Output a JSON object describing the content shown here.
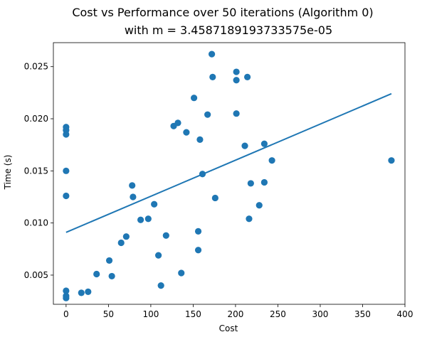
{
  "chart_data": {
    "type": "scatter",
    "title": "Cost vs Performance over 50 iterations (Algorithm 0)",
    "subtitle": "with m = 3.4587189193733575e-05",
    "xlabel": "Cost",
    "ylabel": "Time (s)",
    "xlim": [
      -15,
      400
    ],
    "ylim": [
      0.0022,
      0.0273
    ],
    "grid": false,
    "x_ticks": [
      0,
      50,
      100,
      150,
      200,
      250,
      300,
      350,
      400
    ],
    "y_ticks": [
      0.005,
      0.01,
      0.015,
      0.02,
      0.025
    ],
    "x_tick_labels": [
      "0",
      "50",
      "100",
      "150",
      "200",
      "250",
      "300",
      "350",
      "400"
    ],
    "y_tick_labels": [
      "0.005",
      "0.010",
      "0.015",
      "0.020",
      "0.025"
    ],
    "colors": {
      "series": "#1f77b4"
    },
    "series": [
      {
        "kind": "points",
        "points": [
          [
            0,
            0.0192
          ],
          [
            0,
            0.0189
          ],
          [
            0,
            0.0185
          ],
          [
            0,
            0.015
          ],
          [
            0,
            0.0126
          ],
          [
            0,
            0.0035
          ],
          [
            0,
            0.003
          ],
          [
            0,
            0.0028
          ],
          [
            18,
            0.0033
          ],
          [
            26,
            0.0034
          ],
          [
            36,
            0.0051
          ],
          [
            51,
            0.0064
          ],
          [
            54,
            0.0049
          ],
          [
            65,
            0.0081
          ],
          [
            71,
            0.0087
          ],
          [
            78,
            0.0136
          ],
          [
            79,
            0.0125
          ],
          [
            88,
            0.0103
          ],
          [
            97,
            0.0104
          ],
          [
            104,
            0.0118
          ],
          [
            109,
            0.0069
          ],
          [
            112,
            0.004
          ],
          [
            118,
            0.0088
          ],
          [
            127,
            0.0193
          ],
          [
            132,
            0.0196
          ],
          [
            136,
            0.0052
          ],
          [
            142,
            0.0187
          ],
          [
            151,
            0.022
          ],
          [
            156,
            0.0092
          ],
          [
            156,
            0.0074
          ],
          [
            158,
            0.018
          ],
          [
            161,
            0.0147
          ],
          [
            167,
            0.0204
          ],
          [
            172,
            0.0262
          ],
          [
            173,
            0.024
          ],
          [
            176,
            0.0124
          ],
          [
            201,
            0.0245
          ],
          [
            201,
            0.0237
          ],
          [
            201,
            0.0205
          ],
          [
            211,
            0.0174
          ],
          [
            214,
            0.024
          ],
          [
            216,
            0.0104
          ],
          [
            218,
            0.0138
          ],
          [
            228,
            0.0117
          ],
          [
            234,
            0.0176
          ],
          [
            234,
            0.0139
          ],
          [
            243,
            0.016
          ],
          [
            384,
            0.016
          ]
        ]
      },
      {
        "kind": "trend-line",
        "x": [
          0,
          384
        ],
        "y": [
          0.0091,
          0.0224
        ]
      }
    ]
  }
}
